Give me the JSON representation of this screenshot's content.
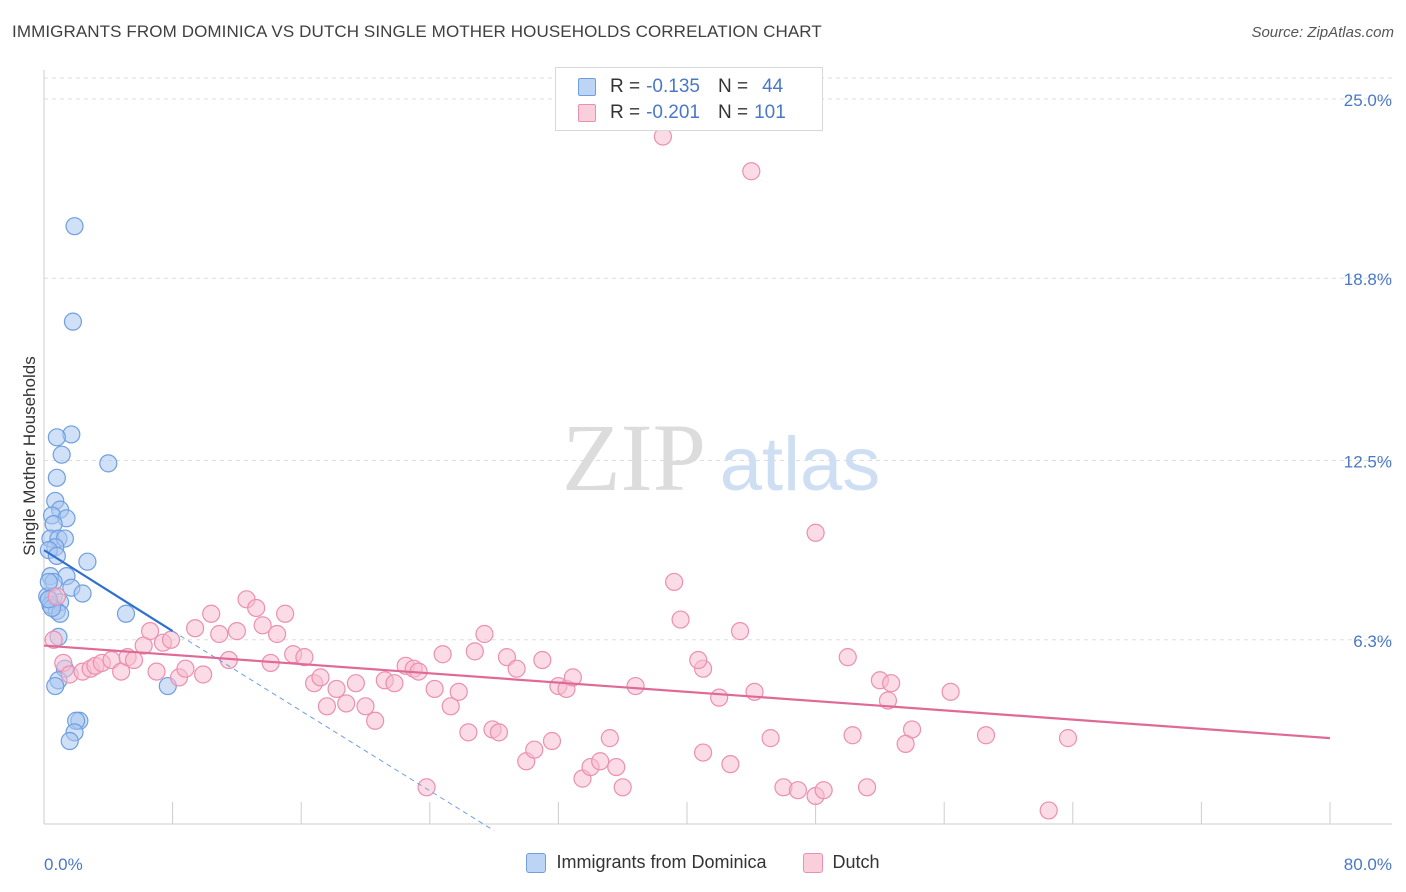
{
  "header": {
    "title": "IMMIGRANTS FROM DOMINICA VS DUTCH SINGLE MOTHER HOUSEHOLDS CORRELATION CHART",
    "source": "Source: ZipAtlas.com"
  },
  "watermark": {
    "zip": "ZIP",
    "atlas": "atlas"
  },
  "legend_top": [
    {
      "r_label": "R =",
      "r_value": "-0.135",
      "n_label": "N =",
      "n_value": "44"
    },
    {
      "r_label": "R =",
      "r_value": "-0.201",
      "n_label": "N =",
      "n_value": "101"
    }
  ],
  "legend_bottom": [
    {
      "label": "Immigrants from Dominica"
    },
    {
      "label": "Dutch"
    }
  ],
  "colors": {
    "blue_fill": "#a9c7f0",
    "blue_stroke": "#6f9fe0",
    "blue_line": "#2f6fcf",
    "pink_fill": "#f7bed0",
    "pink_stroke": "#ec8fb0",
    "pink_line": "#e06a96",
    "tick_text": "#4a78c8",
    "grid": "#dddddd"
  },
  "chart_data": {
    "type": "scatter",
    "title": "IMMIGRANTS FROM DOMINICA VS DUTCH SINGLE MOTHER HOUSEHOLDS CORRELATION CHART",
    "xlabel": "",
    "ylabel": "Single Mother Households",
    "xlim": [
      0,
      80
    ],
    "ylim": [
      0,
      26
    ],
    "x_tick_labels": [
      "0.0%",
      "80.0%"
    ],
    "y_ticks": [
      6.3,
      12.5,
      18.8,
      25.0
    ],
    "y_tick_labels": [
      "6.3%",
      "12.5%",
      "18.8%",
      "25.0%"
    ],
    "grid": true,
    "legend_position": "top-center",
    "series": [
      {
        "name": "Immigrants from Dominica",
        "r": -0.135,
        "n": 44,
        "trend": {
          "x": [
            0,
            8
          ],
          "y": [
            9.4,
            6.6
          ]
        },
        "trend_extension": {
          "x": [
            8,
            28
          ],
          "y": [
            6.6,
            -0.3
          ]
        },
        "points": [
          [
            1.9,
            20.6
          ],
          [
            1.8,
            17.3
          ],
          [
            1.7,
            13.4
          ],
          [
            0.8,
            13.3
          ],
          [
            1.1,
            12.7
          ],
          [
            4.0,
            12.4
          ],
          [
            0.8,
            11.9
          ],
          [
            0.7,
            11.1
          ],
          [
            1.0,
            10.8
          ],
          [
            0.5,
            10.6
          ],
          [
            1.4,
            10.5
          ],
          [
            0.6,
            10.3
          ],
          [
            0.4,
            9.8
          ],
          [
            0.9,
            9.8
          ],
          [
            1.3,
            9.8
          ],
          [
            0.7,
            9.5
          ],
          [
            0.3,
            9.4
          ],
          [
            0.8,
            9.2
          ],
          [
            2.7,
            9.0
          ],
          [
            0.4,
            8.5
          ],
          [
            1.4,
            8.5
          ],
          [
            0.6,
            8.3
          ],
          [
            1.7,
            8.1
          ],
          [
            2.4,
            7.9
          ],
          [
            0.2,
            7.8
          ],
          [
            0.6,
            7.8
          ],
          [
            0.3,
            7.7
          ],
          [
            1.0,
            7.6
          ],
          [
            0.4,
            7.5
          ],
          [
            0.8,
            7.3
          ],
          [
            1.0,
            7.2
          ],
          [
            5.1,
            7.2
          ],
          [
            0.5,
            7.4
          ],
          [
            0.3,
            7.7
          ],
          [
            0.9,
            6.4
          ],
          [
            1.3,
            5.3
          ],
          [
            0.9,
            4.9
          ],
          [
            0.7,
            4.7
          ],
          [
            7.7,
            4.7
          ],
          [
            2.2,
            3.5
          ],
          [
            2.0,
            3.5
          ],
          [
            1.9,
            3.1
          ],
          [
            1.6,
            2.8
          ],
          [
            0.3,
            8.3
          ]
        ]
      },
      {
        "name": "Dutch",
        "r": -0.201,
        "n": 101,
        "trend": {
          "x": [
            0,
            80
          ],
          "y": [
            6.1,
            2.9
          ]
        },
        "points": [
          [
            44.0,
            22.5
          ],
          [
            38.5,
            23.7
          ],
          [
            48.0,
            10.0
          ],
          [
            39.2,
            8.3
          ],
          [
            39.6,
            7.0
          ],
          [
            43.3,
            6.6
          ],
          [
            50.0,
            5.7
          ],
          [
            44.2,
            4.5
          ],
          [
            36.8,
            4.7
          ],
          [
            52.0,
            4.9
          ],
          [
            52.7,
            4.8
          ],
          [
            52.5,
            4.2
          ],
          [
            56.4,
            4.5
          ],
          [
            54.0,
            3.2
          ],
          [
            50.3,
            3.0
          ],
          [
            45.2,
            2.9
          ],
          [
            58.6,
            3.0
          ],
          [
            63.7,
            2.9
          ],
          [
            53.6,
            2.7
          ],
          [
            41.0,
            5.3
          ],
          [
            40.7,
            5.6
          ],
          [
            42.0,
            4.3
          ],
          [
            42.7,
            2.0
          ],
          [
            41.0,
            2.4
          ],
          [
            46.0,
            1.2
          ],
          [
            46.9,
            1.1
          ],
          [
            48.0,
            0.9
          ],
          [
            48.5,
            1.1
          ],
          [
            51.2,
            1.2
          ],
          [
            62.5,
            0.4
          ],
          [
            0.6,
            6.3
          ],
          [
            0.8,
            7.8
          ],
          [
            1.2,
            5.5
          ],
          [
            1.6,
            5.1
          ],
          [
            2.4,
            5.2
          ],
          [
            2.9,
            5.3
          ],
          [
            3.2,
            5.4
          ],
          [
            3.6,
            5.5
          ],
          [
            4.2,
            5.6
          ],
          [
            4.8,
            5.2
          ],
          [
            5.2,
            5.7
          ],
          [
            5.6,
            5.6
          ],
          [
            6.2,
            6.1
          ],
          [
            6.6,
            6.6
          ],
          [
            7.0,
            5.2
          ],
          [
            7.4,
            6.2
          ],
          [
            7.9,
            6.3
          ],
          [
            8.4,
            5.0
          ],
          [
            8.8,
            5.3
          ],
          [
            9.4,
            6.7
          ],
          [
            9.9,
            5.1
          ],
          [
            10.4,
            7.2
          ],
          [
            10.9,
            6.5
          ],
          [
            11.5,
            5.6
          ],
          [
            12.0,
            6.6
          ],
          [
            12.6,
            7.7
          ],
          [
            13.2,
            7.4
          ],
          [
            13.6,
            6.8
          ],
          [
            14.1,
            5.5
          ],
          [
            14.5,
            6.5
          ],
          [
            15.0,
            7.2
          ],
          [
            15.5,
            5.8
          ],
          [
            16.2,
            5.7
          ],
          [
            16.8,
            4.8
          ],
          [
            17.2,
            5.0
          ],
          [
            17.6,
            4.0
          ],
          [
            18.2,
            4.6
          ],
          [
            18.8,
            4.1
          ],
          [
            19.4,
            4.8
          ],
          [
            20.0,
            4.0
          ],
          [
            20.6,
            3.5
          ],
          [
            21.2,
            4.9
          ],
          [
            21.8,
            4.8
          ],
          [
            22.5,
            5.4
          ],
          [
            23.0,
            5.3
          ],
          [
            23.3,
            5.2
          ],
          [
            23.8,
            1.2
          ],
          [
            24.3,
            4.6
          ],
          [
            24.8,
            5.8
          ],
          [
            25.3,
            4.0
          ],
          [
            25.8,
            4.5
          ],
          [
            26.4,
            3.1
          ],
          [
            26.8,
            5.9
          ],
          [
            27.4,
            6.5
          ],
          [
            27.9,
            3.2
          ],
          [
            28.3,
            3.1
          ],
          [
            28.8,
            5.7
          ],
          [
            29.4,
            5.3
          ],
          [
            30.0,
            2.1
          ],
          [
            30.5,
            2.5
          ],
          [
            31.0,
            5.6
          ],
          [
            31.6,
            2.8
          ],
          [
            32.0,
            4.7
          ],
          [
            32.5,
            4.6
          ],
          [
            32.9,
            5.0
          ],
          [
            33.5,
            1.5
          ],
          [
            34.0,
            1.9
          ],
          [
            34.6,
            2.1
          ],
          [
            35.2,
            2.9
          ],
          [
            35.6,
            1.9
          ],
          [
            36.0,
            1.2
          ]
        ]
      }
    ]
  }
}
